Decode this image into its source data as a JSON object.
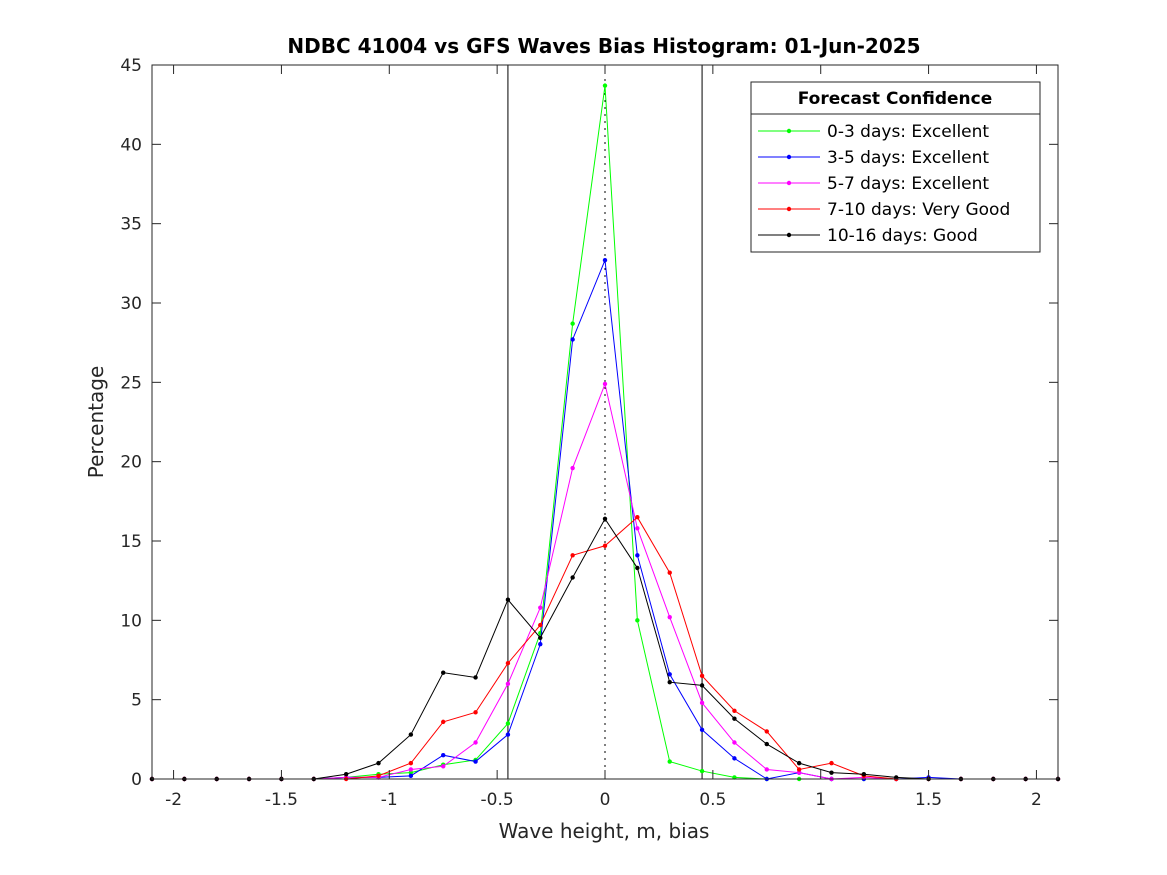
{
  "chart_data": {
    "type": "line",
    "title": "NDBC 41004 vs GFS Waves Bias Histogram: 01-Jun-2025",
    "xlabel": "Wave height, m, bias",
    "ylabel": "Percentage",
    "xlim": [
      -2.1,
      2.1
    ],
    "ylim": [
      0,
      45
    ],
    "x_ticks": [
      -2,
      -1.5,
      -1,
      -0.5,
      0,
      0.5,
      1,
      1.5,
      2
    ],
    "x_tick_labels": [
      "-2",
      "-1.5",
      "-1",
      "-0.5",
      "0",
      "0.5",
      "1",
      "1.5",
      "2"
    ],
    "y_ticks": [
      0,
      5,
      10,
      15,
      20,
      25,
      30,
      35,
      40,
      45
    ],
    "y_tick_labels": [
      "0",
      "5",
      "10",
      "15",
      "20",
      "25",
      "30",
      "35",
      "40",
      "45"
    ],
    "grid": false,
    "legend_title": "Forecast Confidence",
    "legend_position": "top-right",
    "reference_lines": {
      "vertical_solid": [
        -0.45,
        0.45
      ],
      "vertical_dotted": [
        0
      ]
    },
    "x": [
      -2.1,
      -1.95,
      -1.8,
      -1.65,
      -1.5,
      -1.35,
      -1.2,
      -1.05,
      -0.9,
      -0.75,
      -0.6,
      -0.45,
      -0.3,
      -0.15,
      0,
      0.15,
      0.3,
      0.45,
      0.6,
      0.75,
      0.9,
      1.05,
      1.2,
      1.35,
      1.5,
      1.65,
      1.8,
      1.95,
      2.1
    ],
    "series": [
      {
        "name": "0-3 days: Excellent",
        "color": "#00ff00",
        "values": [
          0,
          0,
          0,
          0,
          0,
          0,
          0.1,
          0.3,
          0.4,
          0.9,
          1.2,
          3.5,
          9.2,
          28.7,
          43.7,
          10.0,
          1.1,
          0.5,
          0.1,
          0,
          0,
          0,
          0,
          0,
          0,
          0,
          0,
          0,
          0
        ]
      },
      {
        "name": "3-5 days: Excellent",
        "color": "#0000ff",
        "values": [
          0,
          0,
          0,
          0,
          0,
          0,
          0.1,
          0.1,
          0.2,
          1.5,
          1.1,
          2.8,
          8.5,
          27.7,
          32.7,
          14.1,
          6.6,
          3.1,
          1.3,
          0,
          0.4,
          0,
          0,
          0,
          0.1,
          0,
          0,
          0,
          0
        ]
      },
      {
        "name": "5-7 days: Excellent",
        "color": "#ff00ff",
        "values": [
          0,
          0,
          0,
          0,
          0,
          0,
          0.1,
          0.1,
          0.6,
          0.8,
          2.3,
          6.0,
          10.8,
          19.6,
          24.9,
          15.8,
          10.2,
          4.8,
          2.3,
          0.6,
          0.4,
          0,
          0.1,
          0,
          0,
          0,
          0,
          0,
          0
        ]
      },
      {
        "name": "7-10 days: Very Good",
        "color": "#ff0000",
        "values": [
          0,
          0,
          0,
          0,
          0,
          0,
          0,
          0.2,
          1.0,
          3.6,
          4.2,
          7.3,
          9.7,
          14.1,
          14.7,
          16.5,
          13.0,
          6.5,
          4.3,
          3.0,
          0.6,
          1.0,
          0.2,
          0,
          0,
          0,
          0,
          0,
          0
        ]
      },
      {
        "name": "10-16 days: Good",
        "color": "#000000",
        "values": [
          0,
          0,
          0,
          0,
          0,
          0,
          0.3,
          1.0,
          2.8,
          6.7,
          6.4,
          11.3,
          8.9,
          12.7,
          16.4,
          13.3,
          6.1,
          5.9,
          3.8,
          2.2,
          1.0,
          0.4,
          0.3,
          0.1,
          0,
          0,
          0,
          0,
          0
        ]
      }
    ]
  }
}
